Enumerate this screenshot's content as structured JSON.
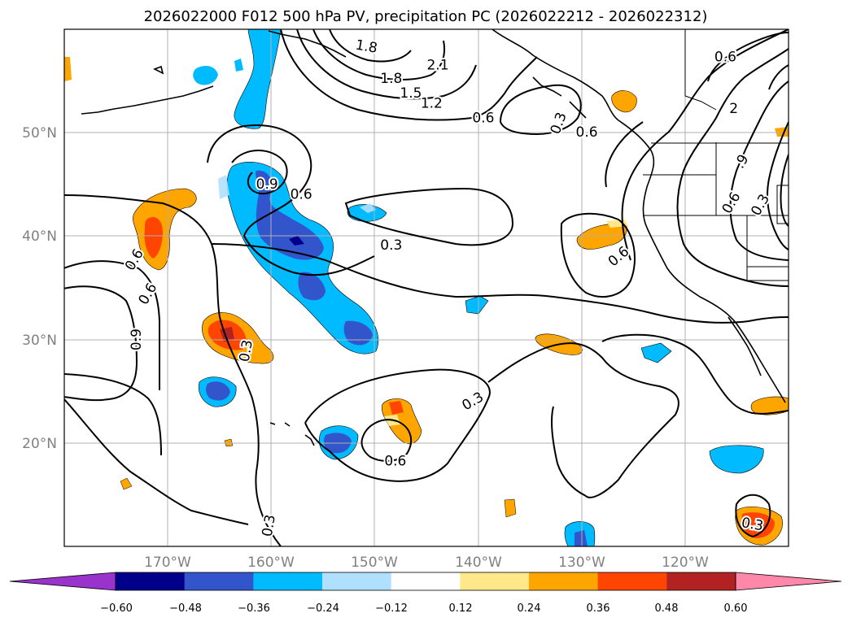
{
  "title": "2026022000 F012 500 hPa PV, precipitation PC (2026022212 - 2026022312)",
  "map": {
    "projection": "PlateCarree",
    "lon_range": [
      -180,
      -110
    ],
    "lat_range": [
      10,
      60
    ],
    "gridlines": true,
    "lat_labels": [
      "50°N",
      "40°N",
      "30°N",
      "20°N"
    ],
    "lon_labels": [
      "170°W",
      "160°W",
      "150°W",
      "140°W",
      "130°W",
      "120°W"
    ]
  },
  "colorbar": {
    "extend": "both",
    "colors": [
      "#9933cc",
      "#00008b",
      "#3355cc",
      "#00bbff",
      "#b0e0ff",
      "#ffffff",
      "#ffe88a",
      "#ffa500",
      "#ff4500",
      "#b22222",
      "#ff88aa"
    ],
    "tick_labels": [
      "−0.60",
      "−0.48",
      "−0.36",
      "−0.24",
      "−0.12",
      "0.12",
      "0.24",
      "0.36",
      "0.48",
      "0.60"
    ]
  },
  "contour_labels": [
    {
      "text": "1.8",
      "lon": -150.8,
      "lat": 58.3,
      "rot": 10
    },
    {
      "text": "2.1",
      "lon": -143.9,
      "lat": 56.5,
      "rot": 0
    },
    {
      "text": "1.8",
      "lon": -148.4,
      "lat": 55.2,
      "rot": 0
    },
    {
      "text": "1.5",
      "lon": -146.5,
      "lat": 53.8,
      "rot": 0
    },
    {
      "text": "1.2",
      "lon": -144.5,
      "lat": 52.8,
      "rot": 0
    },
    {
      "text": "0.6",
      "lon": -139.5,
      "lat": 51.4,
      "rot": 0
    },
    {
      "text": "0.6",
      "lon": -129.5,
      "lat": 50.0,
      "rot": 0
    },
    {
      "text": "0.6",
      "lon": -116.1,
      "lat": 57.3,
      "rot": 0
    },
    {
      "text": "2",
      "lon": -115.3,
      "lat": 52.3,
      "rot": 0
    },
    {
      "text": ".9",
      "lon": -114.5,
      "lat": 47.2,
      "rot": -60
    },
    {
      "text": "0.6",
      "lon": -115.5,
      "lat": 43.2,
      "rot": -60
    },
    {
      "text": "0.3",
      "lon": -112.7,
      "lat": 43.0,
      "rot": -60
    },
    {
      "text": "0.3",
      "lon": -132.2,
      "lat": 50.9,
      "rot": -70
    },
    {
      "text": "0.9",
      "lon": -160.4,
      "lat": 45.0,
      "rot": 0
    },
    {
      "text": "0.6",
      "lon": -157.1,
      "lat": 44.0,
      "rot": 0
    },
    {
      "text": "0.3",
      "lon": -148.4,
      "lat": 39.1,
      "rot": 0
    },
    {
      "text": "0.6",
      "lon": -126.4,
      "lat": 38.0,
      "rot": -40
    },
    {
      "text": "0.6",
      "lon": -173.2,
      "lat": 37.7,
      "rot": -60
    },
    {
      "text": "0.6",
      "lon": -171.9,
      "lat": 34.4,
      "rot": -60
    },
    {
      "text": "0.9",
      "lon": -173.0,
      "lat": 30.0,
      "rot": -90
    },
    {
      "text": "0.3",
      "lon": -162.4,
      "lat": 28.9,
      "rot": -80
    },
    {
      "text": "0.3",
      "lon": -140.5,
      "lat": 24.0,
      "rot": -30
    },
    {
      "text": "0.6",
      "lon": -148.0,
      "lat": 18.2,
      "rot": 0
    },
    {
      "text": "0.3",
      "lon": -160.2,
      "lat": 12.0,
      "rot": -80
    },
    {
      "text": "0.3",
      "lon": -113.5,
      "lat": 12.1,
      "rot": 10
    }
  ]
}
